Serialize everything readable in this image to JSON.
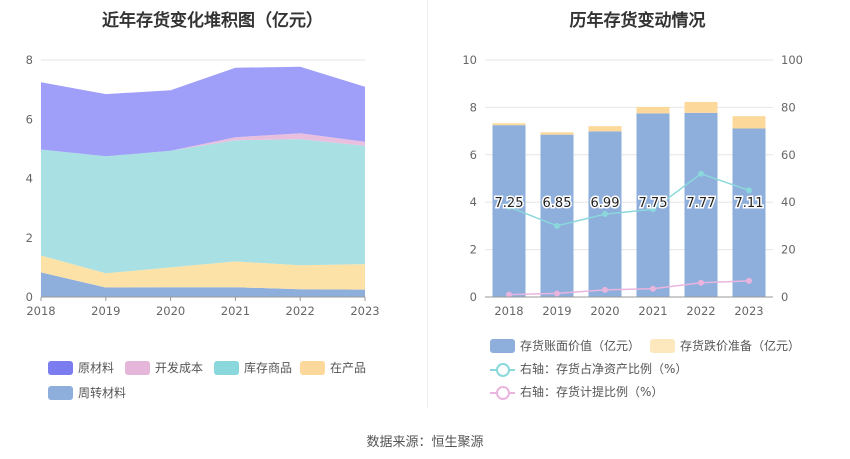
{
  "chart_data": [
    {
      "type": "area",
      "title": "近年存货变化堆积图（亿元）",
      "x": [
        "2018",
        "2019",
        "2020",
        "2021",
        "2022",
        "2023"
      ],
      "ylim": [
        0,
        8
      ],
      "yticks": [
        0,
        2,
        4,
        6,
        8
      ],
      "stacked": true,
      "series": [
        {
          "name": "周转材料",
          "color": "#8eaedb",
          "values": [
            0.83,
            0.32,
            0.33,
            0.33,
            0.26,
            0.25
          ]
        },
        {
          "name": "在产品",
          "color": "#fde2a8",
          "values": [
            0.57,
            0.48,
            0.67,
            0.87,
            0.81,
            0.86
          ]
        },
        {
          "name": "库存商品",
          "color": "#a8e0e3",
          "values": [
            3.58,
            3.95,
            3.94,
            4.09,
            4.26,
            3.99
          ]
        },
        {
          "name": "开发成本",
          "color": "#e9bfe0",
          "values": [
            0.0,
            0.0,
            0.0,
            0.1,
            0.2,
            0.14
          ]
        },
        {
          "name": "原材料",
          "color": "#9f9ef8",
          "values": [
            2.27,
            2.1,
            2.04,
            2.35,
            2.24,
            1.86
          ]
        }
      ],
      "legend": [
        {
          "name": "原材料",
          "color": "#7b7cf0"
        },
        {
          "name": "开发成本",
          "color": "#e5b5da"
        },
        {
          "name": "库存商品",
          "color": "#8ad8dc"
        },
        {
          "name": "在产品",
          "color": "#fcd99a"
        },
        {
          "name": "周转材料",
          "color": "#8eaedb"
        }
      ],
      "legend_position": "bottom",
      "grid": true
    },
    {
      "type": "bar",
      "title": "历年存货变动情况",
      "categories": [
        "2018",
        "2019",
        "2020",
        "2021",
        "2022",
        "2023"
      ],
      "ylim": [
        0,
        10
      ],
      "yticks": [
        0,
        2,
        4,
        6,
        8,
        10
      ],
      "y2lim": [
        0,
        100
      ],
      "y2ticks": [
        0,
        20,
        40,
        60,
        80,
        100
      ],
      "series": [
        {
          "name": "存货账面价值（亿元）",
          "kind": "bar",
          "color": "#8eaedb",
          "values": [
            7.25,
            6.85,
            6.99,
            7.75,
            7.77,
            7.11
          ],
          "labels": [
            "7.25",
            "6.85",
            "6.99",
            "7.75",
            "7.77",
            "7.11"
          ]
        },
        {
          "name": "存货跌价准备（亿元）",
          "kind": "bar-stack",
          "color": "#fcd99a",
          "values": [
            0.08,
            0.1,
            0.22,
            0.27,
            0.46,
            0.52
          ]
        },
        {
          "name": "右轴：存货占净资产比例（%）",
          "kind": "line",
          "axis": "right",
          "color": "#8ad8dc",
          "values": [
            38,
            30,
            35,
            37,
            52,
            45
          ]
        },
        {
          "name": "右轴：存货计提比例（%）",
          "kind": "line",
          "axis": "right",
          "color": "#e9b5df",
          "values": [
            1,
            1.5,
            3,
            3.5,
            6,
            6.8
          ]
        }
      ],
      "legend_position": "bottom",
      "grid": true
    }
  ],
  "source": "数据来源：恒生聚源"
}
